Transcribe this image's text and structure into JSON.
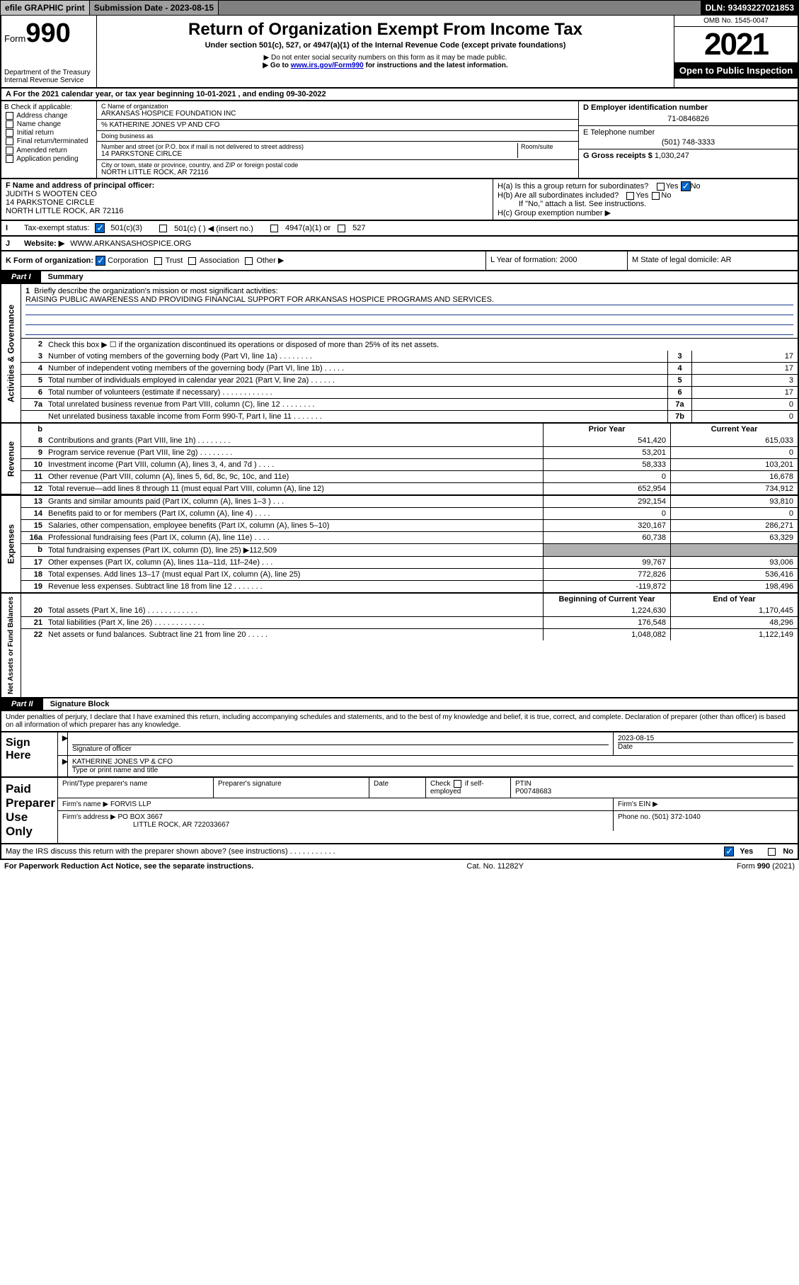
{
  "topbar": {
    "efile": "efile GRAPHIC print",
    "submission_label": "Submission Date - 2023-08-15",
    "dln": "DLN: 93493227021853"
  },
  "header": {
    "form_prefix": "Form",
    "form_number": "990",
    "dept": "Department of the Treasury",
    "irs": "Internal Revenue Service",
    "title": "Return of Organization Exempt From Income Tax",
    "sub": "Under section 501(c), 527, or 4947(a)(1) of the Internal Revenue Code (except private foundations)",
    "note1": "▶ Do not enter social security numbers on this form as it may be made public.",
    "note2_pre": "▶ Go to ",
    "note2_link": "www.irs.gov/Form990",
    "note2_post": " for instructions and the latest information.",
    "omb": "OMB No. 1545-0047",
    "year": "2021",
    "open": "Open to Public Inspection"
  },
  "A": {
    "text": "A For the 2021 calendar year, or tax year beginning 10-01-2021   , and ending 09-30-2022"
  },
  "B": {
    "label": "B Check if applicable:",
    "opts": [
      "Address change",
      "Name change",
      "Initial return",
      "Final return/terminated",
      "Amended return",
      "Application pending"
    ]
  },
  "C": {
    "name_label": "C Name of organization",
    "name": "ARKANSAS HOSPICE FOUNDATION INC",
    "care_of": "% KATHERINE JONES VP AND CFO",
    "dba_label": "Doing business as",
    "street_label": "Number and street (or P.O. box if mail is not delivered to street address)",
    "room_label": "Room/suite",
    "street": "14 PARKSTONE CIRLCE",
    "city_label": "City or town, state or province, country, and ZIP or foreign postal code",
    "city": "NORTH LITTLE ROCK, AR   72116"
  },
  "D": {
    "label": "D Employer identification number",
    "value": "71-0846826"
  },
  "E": {
    "label": "E Telephone number",
    "value": "(501) 748-3333"
  },
  "G": {
    "label": "G Gross receipts $",
    "value": "1,030,247"
  },
  "F": {
    "label": "F Name and address of principal officer:",
    "name": "JUDITH S WOOTEN CEO",
    "street": "14 PARKSTONE CIRCLE",
    "city": "NORTH LITTLE ROCK, AR   72116"
  },
  "H": {
    "a": "H(a)  Is this a group return for subordinates?",
    "b": "H(b)  Are all subordinates included?",
    "b_note": "If \"No,\" attach a list. See instructions.",
    "c": "H(c)  Group exemption number ▶",
    "yes": "Yes",
    "no": "No"
  },
  "I": {
    "label": "Tax-exempt status:",
    "o1": "501(c)(3)",
    "o2": "501(c) (  ) ◀ (insert no.)",
    "o3": "4947(a)(1) or",
    "o4": "527"
  },
  "J": {
    "label": "Website: ▶",
    "value": "WWW.ARKANSASHOSPICE.ORG"
  },
  "K": {
    "label": "K Form of organization:",
    "opts": [
      "Corporation",
      "Trust",
      "Association",
      "Other ▶"
    ]
  },
  "L": {
    "label": "L Year of formation: 2000"
  },
  "M": {
    "label": "M State of legal domicile: AR"
  },
  "part1": {
    "tab": "Part I",
    "title": "Summary",
    "side1": "Activities & Governance",
    "side2": "Revenue",
    "side3": "Expenses",
    "side4": "Net Assets or Fund Balances",
    "l1_label": "Briefly describe the organization's mission or most significant activities:",
    "l1_text": "RAISING PUBLIC AWARENESS AND PROVIDING FINANCIAL SUPPORT FOR ARKANSAS HOSPICE PROGRAMS AND SERVICES.",
    "l2": "Check this box ▶ ☐  if the organization discontinued its operations or disposed of more than 25% of its net assets.",
    "lines_gov": [
      {
        "n": "3",
        "d": "Number of voting members of the governing body (Part VI, line 1a)   .    .    .    .    .    .    .    .",
        "box": "3",
        "v": "17"
      },
      {
        "n": "4",
        "d": "Number of independent voting members of the governing body (Part VI, line 1b)  .    .    .    .    .",
        "box": "4",
        "v": "17"
      },
      {
        "n": "5",
        "d": "Total number of individuals employed in calendar year 2021 (Part V, line 2a)   .    .    .    .    .    .",
        "box": "5",
        "v": "3"
      },
      {
        "n": "6",
        "d": "Total number of volunteers (estimate if necessary)   .    .    .    .    .    .    .    .    .    .    .    .",
        "box": "6",
        "v": "17"
      },
      {
        "n": "7a",
        "d": "Total unrelated business revenue from Part VIII, column (C), line 12   .    .    .    .    .    .    .    .",
        "box": "7a",
        "v": "0"
      },
      {
        "n": "",
        "d": "Net unrelated business taxable income from Form 990-T, Part I, line 11   .    .    .    .    .    .    .",
        "box": "7b",
        "v": "0"
      }
    ],
    "hdr_b": "b",
    "hdr_prior": "Prior Year",
    "hdr_current": "Current Year",
    "rev": [
      {
        "n": "8",
        "d": "Contributions and grants (Part VIII, line 1h)   .    .    .    .    .    .    .    .",
        "p": "541,420",
        "c": "615,033"
      },
      {
        "n": "9",
        "d": "Program service revenue (Part VIII, line 2g)   .    .    .    .    .    .    .    .",
        "p": "53,201",
        "c": "0"
      },
      {
        "n": "10",
        "d": "Investment income (Part VIII, column (A), lines 3, 4, and 7d )   .    .    .    .",
        "p": "58,333",
        "c": "103,201"
      },
      {
        "n": "11",
        "d": "Other revenue (Part VIII, column (A), lines 5, 6d, 8c, 9c, 10c, and 11e)",
        "p": "0",
        "c": "16,678"
      },
      {
        "n": "12",
        "d": "Total revenue—add lines 8 through 11 (must equal Part VIII, column (A), line 12)",
        "p": "652,954",
        "c": "734,912"
      }
    ],
    "exp": [
      {
        "n": "13",
        "d": "Grants and similar amounts paid (Part IX, column (A), lines 1–3 )   .    .    .",
        "p": "292,154",
        "c": "93,810"
      },
      {
        "n": "14",
        "d": "Benefits paid to or for members (Part IX, column (A), line 4)   .    .    .    .",
        "p": "0",
        "c": "0"
      },
      {
        "n": "15",
        "d": "Salaries, other compensation, employee benefits (Part IX, column (A), lines 5–10)",
        "p": "320,167",
        "c": "286,271"
      },
      {
        "n": "16a",
        "d": "Professional fundraising fees (Part IX, column (A), line 11e)   .    .    .    .",
        "p": "60,738",
        "c": "63,329"
      },
      {
        "n": "b",
        "d": "Total fundraising expenses (Part IX, column (D), line 25) ▶112,509",
        "p": "",
        "c": "",
        "shaded": true
      },
      {
        "n": "17",
        "d": "Other expenses (Part IX, column (A), lines 11a–11d, 11f–24e)   .    .    .",
        "p": "99,767",
        "c": "93,006"
      },
      {
        "n": "18",
        "d": "Total expenses. Add lines 13–17 (must equal Part IX, column (A), line 25)",
        "p": "772,826",
        "c": "536,416"
      },
      {
        "n": "19",
        "d": "Revenue less expenses. Subtract line 18 from line 12  .    .    .    .    .    .    .",
        "p": "-119,872",
        "c": "198,496"
      }
    ],
    "hdr_beg": "Beginning of Current Year",
    "hdr_end": "End of Year",
    "net": [
      {
        "n": "20",
        "d": "Total assets (Part X, line 16)   .    .    .    .    .    .    .    .    .    .    .    .",
        "p": "1,224,630",
        "c": "1,170,445"
      },
      {
        "n": "21",
        "d": "Total liabilities (Part X, line 26)  .    .    .    .    .    .    .    .    .    .    .    .",
        "p": "176,548",
        "c": "48,296"
      },
      {
        "n": "22",
        "d": "Net assets or fund balances. Subtract line 21 from line 20   .    .    .    .    .",
        "p": "1,048,082",
        "c": "1,122,149"
      }
    ]
  },
  "part2": {
    "tab": "Part II",
    "title": "Signature Block",
    "decl": "Under penalties of perjury, I declare that I have examined this return, including accompanying schedules and statements, and to the best of my knowledge and belief, it is true, correct, and complete. Declaration of preparer (other than officer) is based on all information of which preparer has any knowledge."
  },
  "sign": {
    "label": "Sign Here",
    "sig_label": "Signature of officer",
    "date_label": "Date",
    "date": "2023-08-15",
    "name": "KATHERINE JONES  VP & CFO",
    "name_label": "Type or print name and title"
  },
  "paid": {
    "label": "Paid Preparer Use Only",
    "h1": "Print/Type preparer's name",
    "h2": "Preparer's signature",
    "h3": "Date",
    "h4a": "Check",
    "h4b": "if self-employed",
    "h5": "PTIN",
    "ptin": "P00748683",
    "firm_label": "Firm's name    ▶",
    "firm": "FORVIS LLP",
    "ein_label": "Firm's EIN ▶",
    "addr_label": "Firm's address ▶",
    "addr1": "PO BOX 3667",
    "addr2": "LITTLE ROCK, AR   722033667",
    "phone_label": "Phone no.",
    "phone": "(501) 372-1040"
  },
  "may": {
    "text": "May the IRS discuss this return with the preparer shown above? (see instructions)   .    .    .    .    .    .    .    .    .    .    .",
    "yes": "Yes",
    "no": "No"
  },
  "footer": {
    "left": "For Paperwork Reduction Act Notice, see the separate instructions.",
    "mid": "Cat. No. 11282Y",
    "right": "Form 990 (2021)"
  },
  "colors": {
    "link": "#0000cc",
    "rule": "#1a3a8a"
  }
}
